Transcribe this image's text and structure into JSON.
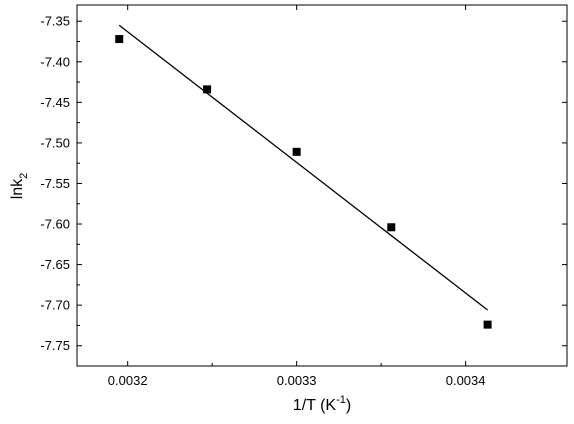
{
  "chart_data": {
    "type": "scatter",
    "xlabel": {
      "base": "1/T (K",
      "sup": "-1",
      "tail": ")"
    },
    "ylabel": {
      "base": "lnk",
      "sub": "2"
    },
    "xlim": [
      0.00317,
      0.00346
    ],
    "ylim": [
      -7.775,
      -7.33
    ],
    "x_ticks": [
      {
        "value": 0.0032,
        "label": "0.0032"
      },
      {
        "value": 0.0033,
        "label": "0.0033"
      },
      {
        "value": 0.0034,
        "label": "0.0034"
      }
    ],
    "y_ticks": [
      {
        "value": -7.35,
        "label": "-7.35"
      },
      {
        "value": -7.4,
        "label": "-7.40"
      },
      {
        "value": -7.45,
        "label": "-7.45"
      },
      {
        "value": -7.5,
        "label": "-7.50"
      },
      {
        "value": -7.55,
        "label": "-7.55"
      },
      {
        "value": -7.6,
        "label": "-7.60"
      },
      {
        "value": -7.65,
        "label": "-7.65"
      },
      {
        "value": -7.7,
        "label": "-7.70"
      },
      {
        "value": -7.75,
        "label": "-7.75"
      }
    ],
    "series": [
      {
        "marker": "square",
        "color": "#000000",
        "points": [
          {
            "x": 0.003195,
            "y": -7.372
          },
          {
            "x": 0.003247,
            "y": -7.434
          },
          {
            "x": 0.0033,
            "y": -7.511
          },
          {
            "x": 0.003356,
            "y": -7.604
          },
          {
            "x": 0.003413,
            "y": -7.724
          }
        ]
      }
    ],
    "fit_line": {
      "color": "#000000",
      "points": [
        {
          "x": 0.003195,
          "y": -7.355
        },
        {
          "x": 0.003413,
          "y": -7.706
        }
      ]
    },
    "grid": false,
    "legend": "none"
  }
}
